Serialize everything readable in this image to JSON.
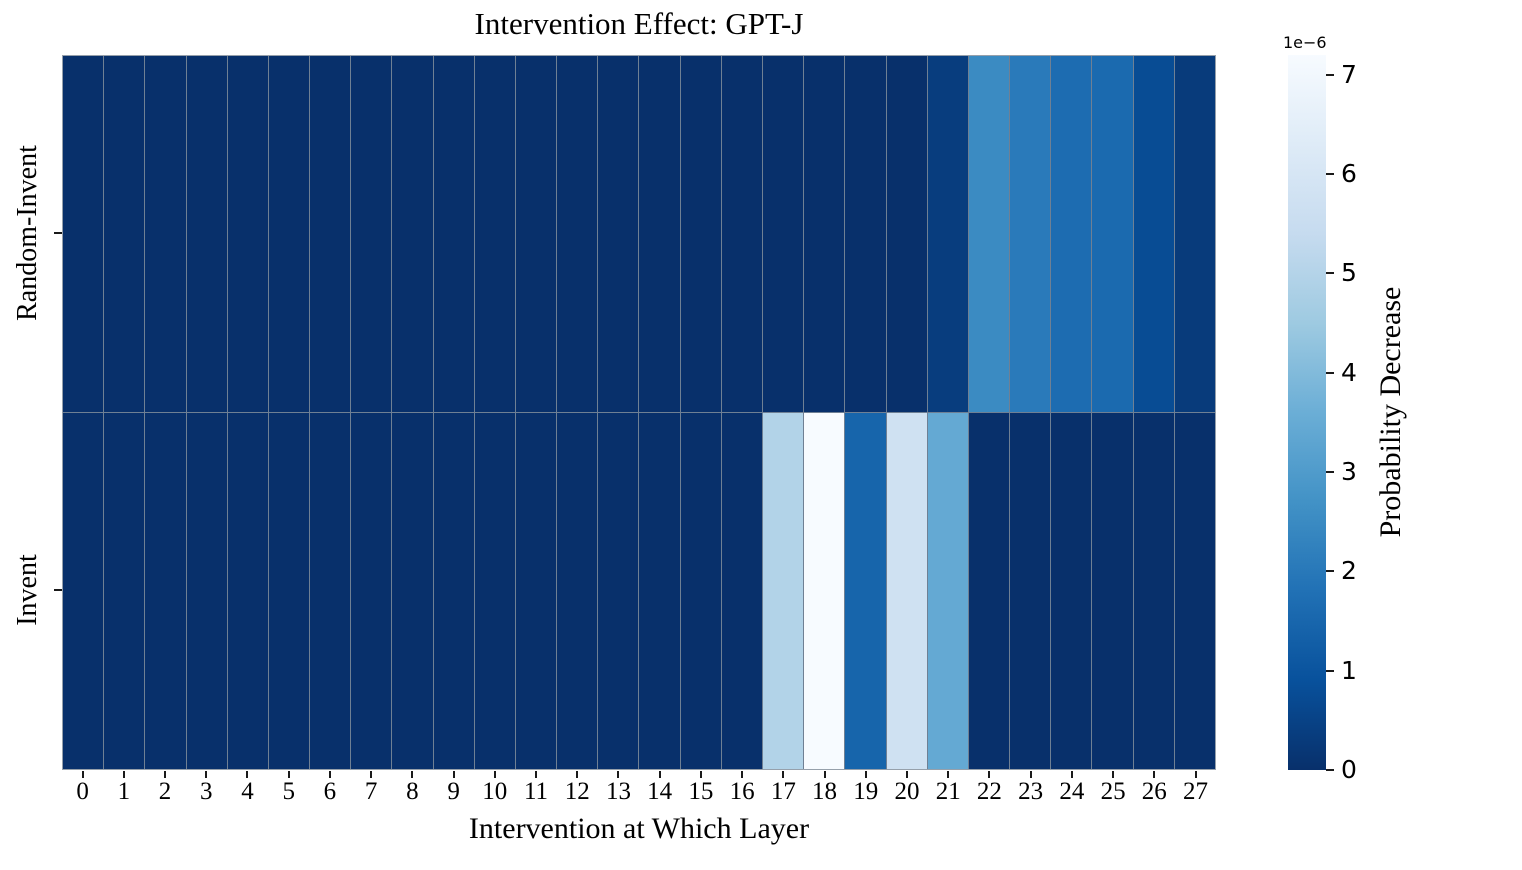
{
  "chart_data": {
    "type": "heatmap",
    "title": "Intervention Effect: GPT-J",
    "xlabel": "Intervention at Which Layer",
    "x_ticks": [
      "0",
      "1",
      "2",
      "3",
      "4",
      "5",
      "6",
      "7",
      "8",
      "9",
      "10",
      "11",
      "12",
      "13",
      "14",
      "15",
      "16",
      "17",
      "18",
      "19",
      "20",
      "21",
      "22",
      "23",
      "24",
      "25",
      "26",
      "27"
    ],
    "unit": "1e-6",
    "vmin": 0,
    "vmax": 7.2,
    "series": [
      {
        "name": "Random-Invent",
        "values": [
          0,
          0,
          0,
          0,
          0,
          0,
          0,
          0,
          0,
          0,
          0,
          0,
          0,
          0,
          0,
          0,
          0,
          0,
          0,
          0,
          0,
          0.35,
          2.5,
          2.05,
          1.65,
          1.6,
          0.75,
          0.3
        ]
      },
      {
        "name": "Invent",
        "values": [
          0,
          0,
          0,
          0,
          0,
          0,
          0,
          0,
          0,
          0,
          0,
          0,
          0,
          0,
          0,
          0,
          0,
          4.95,
          7.2,
          1.45,
          5.75,
          3.45,
          0,
          0,
          0,
          0,
          0,
          0
        ]
      }
    ],
    "colorbar": {
      "label": "Probability Decrease",
      "scale_label": "1e−6",
      "ticks": [
        0,
        1,
        2,
        3,
        4,
        5,
        6,
        7
      ]
    },
    "colormap": "Blues (dark = low, light = high)",
    "colormap_stops": [
      [
        8,
        48,
        107
      ],
      [
        8,
        81,
        156
      ],
      [
        33,
        113,
        181
      ],
      [
        66,
        146,
        198
      ],
      [
        107,
        174,
        214
      ],
      [
        158,
        202,
        225
      ],
      [
        198,
        219,
        239
      ],
      [
        222,
        235,
        247
      ],
      [
        247,
        251,
        255
      ]
    ],
    "colors": {
      "grid": "#6f8094",
      "background": "#ffffff",
      "text": "#000000"
    },
    "layout": {
      "legend_position": "right-colorbar",
      "grid": "on"
    }
  }
}
